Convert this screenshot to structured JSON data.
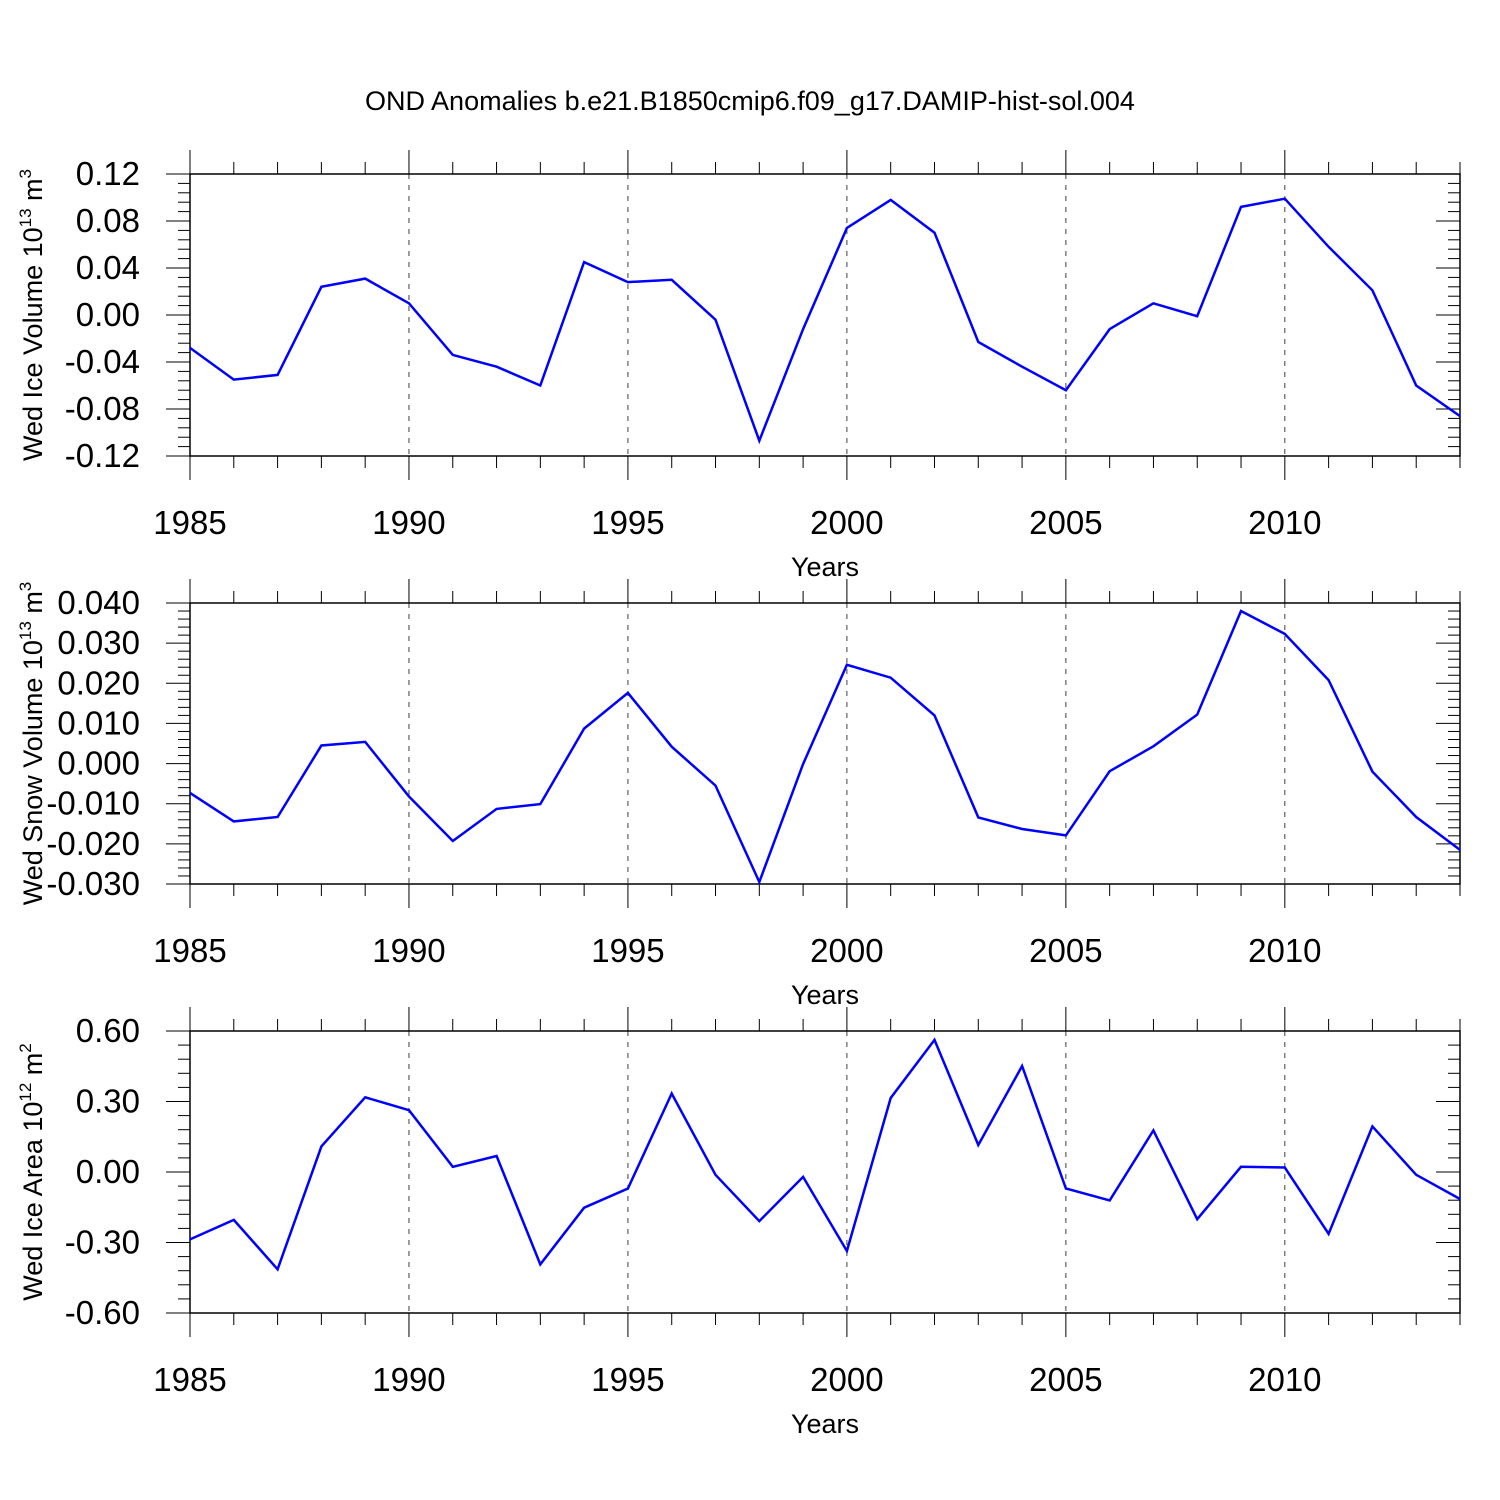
{
  "title": "OND Anomalies b.e21.B1850cmip6.f09_g17.DAMIP-hist-sol.004",
  "colors": {
    "series": "#0000ff",
    "axes": "#000000",
    "grid": "#000000"
  },
  "chart_data": [
    {
      "type": "line",
      "ylabel": {
        "base": "Wed Ice Volume 10",
        "exp": "13",
        "unit": " m",
        "unit_exp": "3"
      },
      "xlabel": "Years",
      "xlim": [
        1985,
        2014
      ],
      "ylim": [
        -0.12,
        0.12
      ],
      "yticks": [
        "-0.12",
        "-0.08",
        "-0.04",
        "0.00",
        "0.04",
        "0.08",
        "0.12"
      ],
      "xticks": [
        "1985",
        "1990",
        "1995",
        "2000",
        "2005",
        "2010"
      ],
      "grid": "dashed vertical at major x ticks",
      "x": [
        1985,
        1986,
        1987,
        1988,
        1989,
        1990,
        1991,
        1992,
        1993,
        1994,
        1995,
        1996,
        1997,
        1998,
        1999,
        2000,
        2001,
        2002,
        2003,
        2004,
        2005,
        2006,
        2007,
        2008,
        2009,
        2010,
        2011,
        2012,
        2013,
        2014
      ],
      "values": [
        -0.028,
        -0.055,
        -0.051,
        0.024,
        0.031,
        0.01,
        -0.034,
        -0.044,
        -0.06,
        0.045,
        0.028,
        0.03,
        -0.004,
        -0.107,
        -0.012,
        0.074,
        0.098,
        0.07,
        -0.023,
        -0.044,
        -0.064,
        -0.012,
        0.01,
        -0.001,
        0.092,
        0.099,
        0.058,
        0.021,
        -0.06,
        -0.086
      ]
    },
    {
      "type": "line",
      "ylabel": {
        "base": "Wed Snow Volume 10",
        "exp": "13",
        "unit": " m",
        "unit_exp": "3"
      },
      "xlabel": "Years",
      "xlim": [
        1985,
        2014
      ],
      "ylim": [
        -0.03,
        0.04
      ],
      "yticks": [
        "-0.030",
        "-0.020",
        "-0.010",
        "0.000",
        "0.010",
        "0.020",
        "0.030",
        "0.040"
      ],
      "xticks": [
        "1985",
        "1990",
        "1995",
        "2000",
        "2005",
        "2010"
      ],
      "grid": "dashed vertical at major x ticks",
      "x": [
        1985,
        1986,
        1987,
        1988,
        1989,
        1990,
        1991,
        1992,
        1993,
        1994,
        1995,
        1996,
        1997,
        1998,
        1999,
        2000,
        2001,
        2002,
        2003,
        2004,
        2005,
        2006,
        2007,
        2008,
        2009,
        2010,
        2011,
        2012,
        2013,
        2014
      ],
      "values": [
        -0.0073,
        -0.0144,
        -0.0133,
        0.0045,
        0.0054,
        -0.0082,
        -0.0193,
        -0.0113,
        -0.0101,
        0.0087,
        0.0176,
        0.0042,
        -0.0055,
        -0.0295,
        -0.0001,
        0.0246,
        0.0214,
        0.012,
        -0.0134,
        -0.0163,
        -0.0179,
        -0.0019,
        0.0043,
        0.0122,
        0.038,
        0.0323,
        0.0208,
        -0.002,
        -0.0133,
        -0.0215
      ]
    },
    {
      "type": "line",
      "ylabel": {
        "base": "Wed Ice Area 10",
        "exp": "12",
        "unit": " m",
        "unit_exp": "2"
      },
      "xlabel": "Years",
      "xlim": [
        1985,
        2014
      ],
      "ylim": [
        -0.6,
        0.6
      ],
      "yticks": [
        "-0.60",
        "-0.30",
        "0.00",
        "0.30",
        "0.60"
      ],
      "xticks": [
        "1985",
        "1990",
        "1995",
        "2000",
        "2005",
        "2010"
      ],
      "grid": "dashed vertical at major x ticks",
      "x": [
        1985,
        1986,
        1987,
        1988,
        1989,
        1990,
        1991,
        1992,
        1993,
        1994,
        1995,
        1996,
        1997,
        1998,
        1999,
        2000,
        2001,
        2002,
        2003,
        2004,
        2005,
        2006,
        2007,
        2008,
        2009,
        2010,
        2011,
        2012,
        2013,
        2014
      ],
      "values": [
        -0.287,
        -0.204,
        -0.414,
        0.109,
        0.318,
        0.263,
        0.022,
        0.068,
        -0.393,
        -0.152,
        -0.07,
        0.334,
        -0.012,
        -0.209,
        -0.021,
        -0.336,
        0.315,
        0.562,
        0.115,
        0.451,
        -0.07,
        -0.121,
        0.177,
        -0.201,
        0.022,
        0.019,
        -0.263,
        0.194,
        -0.012,
        -0.115
      ]
    }
  ]
}
